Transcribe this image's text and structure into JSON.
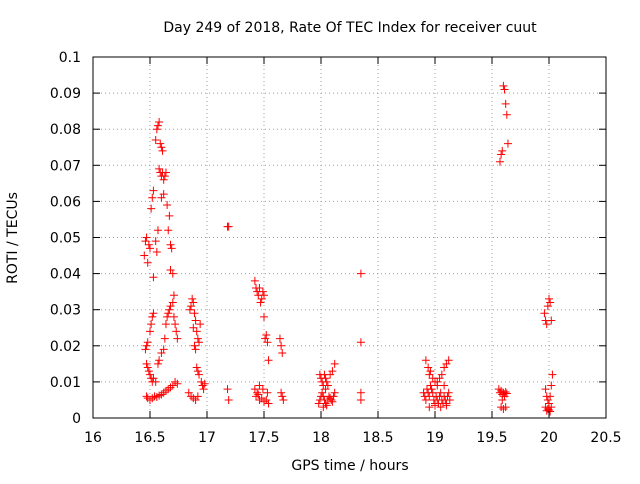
{
  "chart_data": {
    "type": "scatter",
    "title": "Day 249 of 2018, Rate Of TEC Index for receiver cuut",
    "xlabel": "GPS time / hours",
    "ylabel": "ROTI / TECUs",
    "xlim": [
      16,
      20.5
    ],
    "ylim": [
      0,
      0.1
    ],
    "xticks": [
      "16",
      "16.5",
      "17",
      "17.5",
      "18",
      "18.5",
      "19",
      "19.5",
      "20",
      "20.5"
    ],
    "yticks": [
      "0",
      "0.01",
      "0.02",
      "0.03",
      "0.04",
      "0.05",
      "0.06",
      "0.07",
      "0.08",
      "0.09",
      "0.1"
    ],
    "grid": true,
    "marker": "+",
    "series": [
      {
        "name": "ROTI",
        "color": "#ff0000",
        "points": [
          [
            16.45,
            0.045
          ],
          [
            16.46,
            0.049
          ],
          [
            16.47,
            0.05
          ],
          [
            16.48,
            0.043
          ],
          [
            16.49,
            0.048
          ],
          [
            16.5,
            0.047
          ],
          [
            16.51,
            0.058
          ],
          [
            16.52,
            0.061
          ],
          [
            16.53,
            0.063
          ],
          [
            16.55,
            0.049
          ],
          [
            16.56,
            0.046
          ],
          [
            16.57,
            0.052
          ],
          [
            16.55,
            0.077
          ],
          [
            16.56,
            0.08
          ],
          [
            16.57,
            0.081
          ],
          [
            16.58,
            0.082
          ],
          [
            16.59,
            0.076
          ],
          [
            16.6,
            0.075
          ],
          [
            16.61,
            0.074
          ],
          [
            16.58,
            0.069
          ],
          [
            16.59,
            0.068
          ],
          [
            16.6,
            0.067
          ],
          [
            16.61,
            0.068
          ],
          [
            16.62,
            0.066
          ],
          [
            16.63,
            0.067
          ],
          [
            16.64,
            0.068
          ],
          [
            16.6,
            0.061
          ],
          [
            16.62,
            0.062
          ],
          [
            16.65,
            0.059
          ],
          [
            16.67,
            0.056
          ],
          [
            16.66,
            0.052
          ],
          [
            16.68,
            0.048
          ],
          [
            16.69,
            0.047
          ],
          [
            16.68,
            0.041
          ],
          [
            16.7,
            0.04
          ],
          [
            16.71,
            0.034
          ],
          [
            16.53,
            0.039
          ],
          [
            16.46,
            0.019
          ],
          [
            16.47,
            0.02
          ],
          [
            16.48,
            0.021
          ],
          [
            16.5,
            0.024
          ],
          [
            16.51,
            0.026
          ],
          [
            16.52,
            0.028
          ],
          [
            16.53,
            0.029
          ],
          [
            16.47,
            0.015
          ],
          [
            16.48,
            0.014
          ],
          [
            16.49,
            0.013
          ],
          [
            16.5,
            0.012
          ],
          [
            16.51,
            0.011
          ],
          [
            16.52,
            0.01
          ],
          [
            16.53,
            0.011
          ],
          [
            16.55,
            0.01
          ],
          [
            16.57,
            0.015
          ],
          [
            16.58,
            0.016
          ],
          [
            16.6,
            0.018
          ],
          [
            16.62,
            0.019
          ],
          [
            16.63,
            0.022
          ],
          [
            16.64,
            0.026
          ],
          [
            16.65,
            0.028
          ],
          [
            16.66,
            0.029
          ],
          [
            16.67,
            0.03
          ],
          [
            16.68,
            0.031
          ],
          [
            16.7,
            0.032
          ],
          [
            16.71,
            0.028
          ],
          [
            16.72,
            0.026
          ],
          [
            16.73,
            0.024
          ],
          [
            16.74,
            0.022
          ],
          [
            16.47,
            0.006
          ],
          [
            16.48,
            0.0055
          ],
          [
            16.5,
            0.005
          ],
          [
            16.52,
            0.0055
          ],
          [
            16.54,
            0.006
          ],
          [
            16.56,
            0.0058
          ],
          [
            16.58,
            0.0062
          ],
          [
            16.6,
            0.0065
          ],
          [
            16.62,
            0.007
          ],
          [
            16.64,
            0.0075
          ],
          [
            16.66,
            0.008
          ],
          [
            16.68,
            0.0085
          ],
          [
            16.7,
            0.009
          ],
          [
            16.72,
            0.01
          ],
          [
            16.74,
            0.0095
          ],
          [
            16.85,
            0.03
          ],
          [
            16.86,
            0.031
          ],
          [
            16.87,
            0.033
          ],
          [
            16.88,
            0.032
          ],
          [
            16.89,
            0.029
          ],
          [
            16.9,
            0.027
          ],
          [
            16.91,
            0.024
          ],
          [
            16.92,
            0.022
          ],
          [
            16.93,
            0.021
          ],
          [
            16.94,
            0.026
          ],
          [
            16.88,
            0.025
          ],
          [
            16.89,
            0.02
          ],
          [
            16.9,
            0.019
          ],
          [
            16.91,
            0.014
          ],
          [
            16.92,
            0.013
          ],
          [
            16.93,
            0.012
          ],
          [
            16.95,
            0.01
          ],
          [
            16.96,
            0.009
          ],
          [
            16.97,
            0.008
          ],
          [
            16.98,
            0.0095
          ],
          [
            16.84,
            0.007
          ],
          [
            16.86,
            0.006
          ],
          [
            16.88,
            0.0055
          ],
          [
            16.9,
            0.005
          ],
          [
            16.92,
            0.006
          ],
          [
            17.18,
            0.053
          ],
          [
            17.19,
            0.053
          ],
          [
            17.18,
            0.008
          ],
          [
            17.19,
            0.005
          ],
          [
            17.42,
            0.038
          ],
          [
            17.43,
            0.036
          ],
          [
            17.44,
            0.035
          ],
          [
            17.45,
            0.034
          ],
          [
            17.46,
            0.036
          ],
          [
            17.47,
            0.032
          ],
          [
            17.48,
            0.033
          ],
          [
            17.49,
            0.035
          ],
          [
            17.5,
            0.034
          ],
          [
            17.5,
            0.028
          ],
          [
            17.51,
            0.022
          ],
          [
            17.52,
            0.023
          ],
          [
            17.53,
            0.021
          ],
          [
            17.54,
            0.016
          ],
          [
            17.64,
            0.022
          ],
          [
            17.65,
            0.02
          ],
          [
            17.66,
            0.018
          ],
          [
            17.42,
            0.008
          ],
          [
            17.43,
            0.006
          ],
          [
            17.44,
            0.007
          ],
          [
            17.45,
            0.0065
          ],
          [
            17.46,
            0.005
          ],
          [
            17.48,
            0.0055
          ],
          [
            17.5,
            0.0045
          ],
          [
            17.52,
            0.005
          ],
          [
            17.54,
            0.004
          ],
          [
            17.46,
            0.009
          ],
          [
            17.49,
            0.008
          ],
          [
            17.53,
            0.007
          ],
          [
            17.65,
            0.007
          ],
          [
            17.66,
            0.006
          ],
          [
            17.67,
            0.005
          ],
          [
            17.99,
            0.012
          ],
          [
            18.0,
            0.011
          ],
          [
            18.01,
            0.01
          ],
          [
            18.02,
            0.009
          ],
          [
            18.03,
            0.012
          ],
          [
            18.04,
            0.011
          ],
          [
            18.05,
            0.01
          ],
          [
            18.06,
            0.009
          ],
          [
            18.08,
            0.012
          ],
          [
            18.1,
            0.013
          ],
          [
            18.12,
            0.015
          ],
          [
            17.98,
            0.004
          ],
          [
            17.99,
            0.005
          ],
          [
            18.0,
            0.006
          ],
          [
            18.01,
            0.007
          ],
          [
            18.02,
            0.006
          ],
          [
            18.03,
            0.005
          ],
          [
            18.04,
            0.004
          ],
          [
            18.05,
            0.0035
          ],
          [
            18.06,
            0.005
          ],
          [
            18.07,
            0.006
          ],
          [
            18.08,
            0.0055
          ],
          [
            18.09,
            0.005
          ],
          [
            18.1,
            0.0045
          ],
          [
            18.11,
            0.006
          ],
          [
            18.12,
            0.007
          ],
          [
            18.02,
            0.003
          ],
          [
            18.04,
            0.008
          ],
          [
            18.35,
            0.04
          ],
          [
            18.35,
            0.021
          ],
          [
            18.35,
            0.007
          ],
          [
            18.35,
            0.005
          ],
          [
            18.92,
            0.016
          ],
          [
            18.94,
            0.014
          ],
          [
            18.95,
            0.012
          ],
          [
            18.96,
            0.013
          ],
          [
            18.98,
            0.011
          ],
          [
            19.0,
            0.01
          ],
          [
            19.02,
            0.009
          ],
          [
            19.04,
            0.011
          ],
          [
            19.06,
            0.012
          ],
          [
            19.08,
            0.014
          ],
          [
            19.1,
            0.015
          ],
          [
            19.12,
            0.016
          ],
          [
            18.9,
            0.007
          ],
          [
            18.91,
            0.006
          ],
          [
            18.92,
            0.005
          ],
          [
            18.93,
            0.008
          ],
          [
            18.94,
            0.007
          ],
          [
            18.95,
            0.006
          ],
          [
            18.96,
            0.009
          ],
          [
            18.97,
            0.008
          ],
          [
            18.98,
            0.007
          ],
          [
            18.99,
            0.005
          ],
          [
            19.0,
            0.004
          ],
          [
            19.01,
            0.006
          ],
          [
            19.02,
            0.005
          ],
          [
            19.03,
            0.004
          ],
          [
            19.04,
            0.006
          ],
          [
            19.05,
            0.007
          ],
          [
            19.06,
            0.005
          ],
          [
            19.07,
            0.004
          ],
          [
            19.08,
            0.006
          ],
          [
            19.09,
            0.005
          ],
          [
            19.1,
            0.004
          ],
          [
            19.11,
            0.006
          ],
          [
            19.12,
            0.007
          ],
          [
            19.13,
            0.005
          ],
          [
            18.95,
            0.003
          ],
          [
            19.0,
            0.0035
          ],
          [
            19.05,
            0.003
          ],
          [
            19.1,
            0.0035
          ],
          [
            19.02,
            0.01
          ],
          [
            19.08,
            0.009
          ],
          [
            19.57,
            0.071
          ],
          [
            19.58,
            0.073
          ],
          [
            19.59,
            0.074
          ],
          [
            19.6,
            0.092
          ],
          [
            19.61,
            0.091
          ],
          [
            19.62,
            0.087
          ],
          [
            19.63,
            0.084
          ],
          [
            19.64,
            0.076
          ],
          [
            19.56,
            0.008
          ],
          [
            19.57,
            0.007
          ],
          [
            19.58,
            0.0075
          ],
          [
            19.59,
            0.0065
          ],
          [
            19.6,
            0.007
          ],
          [
            19.61,
            0.006
          ],
          [
            19.62,
            0.0072
          ],
          [
            19.63,
            0.0068
          ],
          [
            19.58,
            0.003
          ],
          [
            19.6,
            0.0025
          ],
          [
            19.62,
            0.003
          ],
          [
            19.59,
            0.005
          ],
          [
            19.96,
            0.029
          ],
          [
            19.97,
            0.027
          ],
          [
            19.98,
            0.026
          ],
          [
            19.99,
            0.031
          ],
          [
            20.0,
            0.033
          ],
          [
            20.01,
            0.032
          ],
          [
            20.02,
            0.027
          ],
          [
            19.97,
            0.008
          ],
          [
            19.98,
            0.006
          ],
          [
            19.99,
            0.005
          ],
          [
            20.0,
            0.004
          ],
          [
            20.01,
            0.006
          ],
          [
            20.02,
            0.009
          ],
          [
            20.03,
            0.012
          ],
          [
            19.97,
            0.003
          ],
          [
            19.98,
            0.002
          ],
          [
            19.99,
            0.0025
          ],
          [
            20.0,
            0.0022
          ],
          [
            20.01,
            0.0018
          ],
          [
            20.02,
            0.003
          ]
        ]
      }
    ]
  }
}
